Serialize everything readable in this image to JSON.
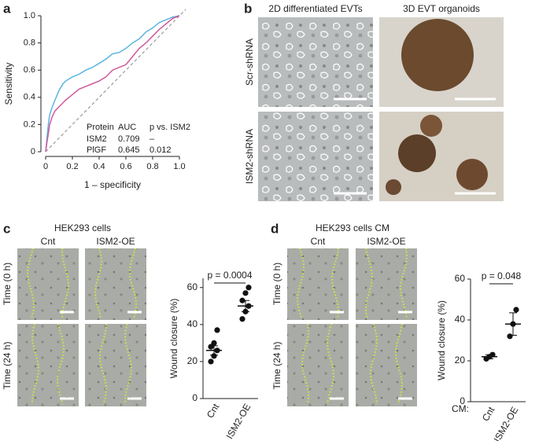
{
  "panels": {
    "a": {
      "label": "a"
    },
    "b": {
      "label": "b",
      "col1": "2D differentiated EVTs",
      "col2": "3D EVT organoids",
      "row1": "Scr-shRNA",
      "row2": "ISM2-shRNA"
    },
    "c": {
      "label": "c",
      "title": "HEK293 cells",
      "col1": "Cnt",
      "col2": "ISM2-OE",
      "row1": "Time (0 h)",
      "row2": "Time (24 h)"
    },
    "d": {
      "label": "d",
      "title": "HEK293 cells CM",
      "col1": "Cnt",
      "col2": "ISM2-OE",
      "row1": "Time (0 h)",
      "row2": "Time (24 h)",
      "cm": "CM:"
    }
  },
  "chart_data": [
    {
      "type": "line",
      "x_label": "1 – specificity",
      "y_label": "Sensitivity",
      "x": [
        0,
        0.01,
        0.02,
        0.03,
        0.05,
        0.07,
        0.1,
        0.13,
        0.15,
        0.2,
        0.25,
        0.3,
        0.35,
        0.4,
        0.45,
        0.5,
        0.55,
        0.6,
        0.65,
        0.7,
        0.75,
        0.8,
        0.85,
        0.9,
        0.95,
        1
      ],
      "series": [
        {
          "name": "ISM2",
          "color": "#5ab4e0",
          "auc": 0.709,
          "p": "–",
          "values": [
            0,
            0.1,
            0.2,
            0.27,
            0.33,
            0.38,
            0.45,
            0.5,
            0.52,
            0.55,
            0.57,
            0.6,
            0.62,
            0.65,
            0.68,
            0.72,
            0.73,
            0.76,
            0.8,
            0.83,
            0.88,
            0.91,
            0.95,
            0.97,
            0.99,
            1
          ]
        },
        {
          "name": "PlGF",
          "color": "#d05a9a",
          "auc": 0.645,
          "p": 0.012,
          "values": [
            0,
            0.07,
            0.13,
            0.2,
            0.26,
            0.3,
            0.33,
            0.36,
            0.38,
            0.42,
            0.46,
            0.48,
            0.5,
            0.52,
            0.55,
            0.6,
            0.62,
            0.64,
            0.7,
            0.76,
            0.8,
            0.85,
            0.9,
            0.94,
            0.98,
            1
          ]
        }
      ],
      "table_headers": [
        "Protein",
        "AUC",
        "p vs. ISM2"
      ],
      "xlim": [
        0,
        1
      ],
      "ylim": [
        0,
        1
      ],
      "xticks": [
        0,
        0.2,
        0.4,
        0.6,
        0.8,
        {
          "value": 1,
          "label": "1.0"
        }
      ],
      "yticks": [
        0,
        0.2,
        0.4,
        0.6,
        0.8,
        {
          "value": 1,
          "label": "1.0"
        }
      ]
    },
    {
      "type": "strip",
      "y_label": "Wound closure (%)",
      "annotation": "p = 0.0004",
      "categories": [
        "Cnt",
        "ISM2-OE"
      ],
      "points": [
        [
          20,
          23,
          26,
          28,
          30,
          37
        ],
        [
          43,
          47,
          50,
          53,
          57,
          60
        ]
      ],
      "means": [
        26,
        50
      ],
      "errors": [
        2.5,
        3
      ],
      "ylim": [
        0,
        65
      ],
      "yticks": [
        0,
        20,
        40,
        60
      ]
    },
    {
      "type": "strip",
      "y_label": "Wound closure (%)",
      "annotation": "p = 0.048",
      "categories": [
        "Cnt",
        "ISM2-OE"
      ],
      "points": [
        [
          21,
          22,
          23
        ],
        [
          32,
          38,
          45
        ]
      ],
      "means": [
        22,
        38
      ],
      "errors": [
        1,
        5.5
      ],
      "ylim": [
        0,
        60
      ],
      "yticks": [
        0,
        20,
        40,
        60
      ]
    }
  ]
}
